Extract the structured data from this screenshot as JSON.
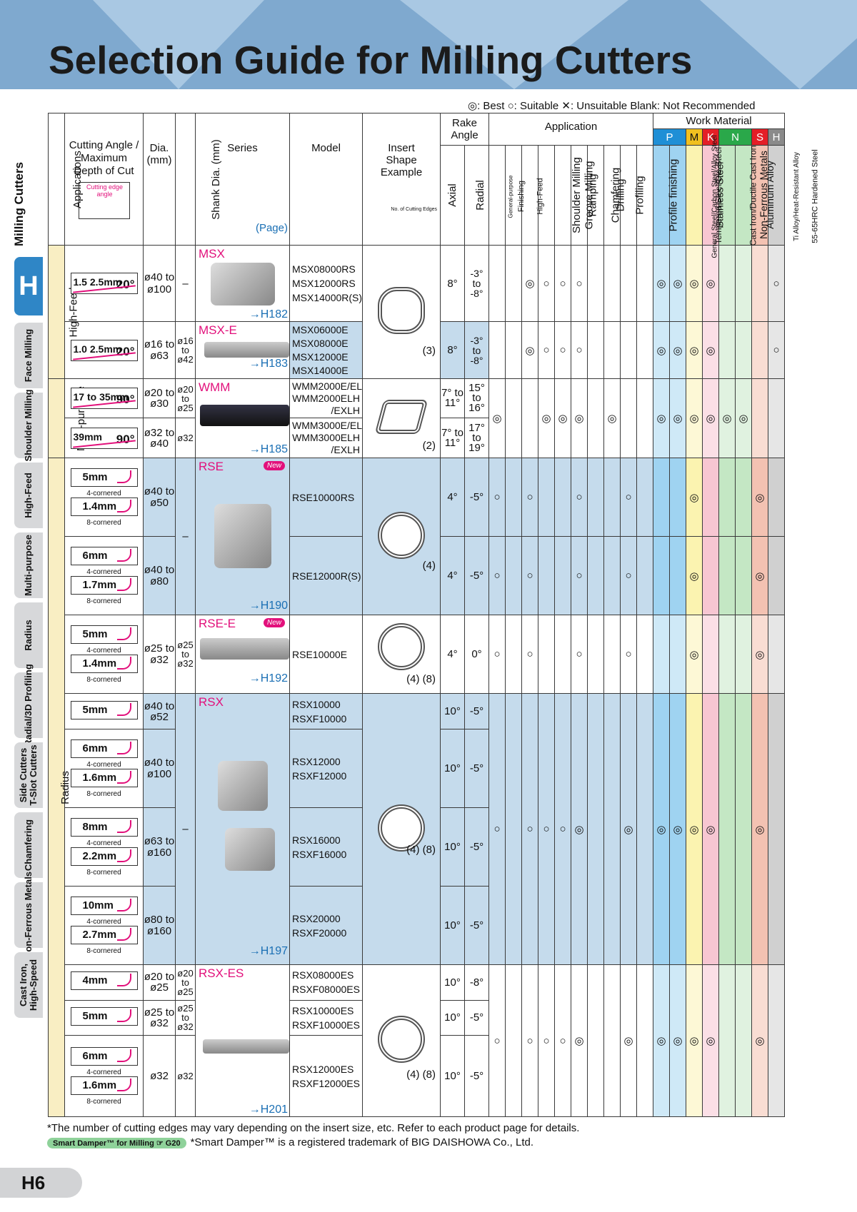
{
  "title": "Selection Guide for Milling Cutters",
  "legend": "◎: Best ○: Suitable ✕: Unsuitable Blank: Not Recommended",
  "side": {
    "main": "Milling Cutters",
    "letter": "H",
    "tabs": [
      "Face Milling",
      "Shoulder Milling",
      "High-Feed",
      "Multi-purpose",
      "Radius",
      "Radial/3D Profiling",
      "Side Cutters T-Slot Cutters",
      "Chamfering",
      "Non-Ferrous Metals",
      "Cast Iron, High-Speed"
    ]
  },
  "head": {
    "applications": "Applications",
    "cutting_angle": "Cutting Angle / Maximum Depth of Cut",
    "cutting_edge_angle": "Cutting edge angle",
    "dia": "Dia. (mm)",
    "shank": "Shank Dia. (mm)",
    "series": "Series",
    "page": "(Page)",
    "model": "Model",
    "insert": "Insert Shape Example",
    "no_edges": "No. of Cutting Edges",
    "rake": "Rake Angle",
    "axial": "Axial",
    "radial": "Radial",
    "application": "Application",
    "work_material": "Work Material",
    "apps": [
      "General-purpose",
      "Finishing",
      "High-Feed",
      "Shoulder Milling",
      "Groove Milling",
      "Ramping",
      "Chamfering",
      "Drilling",
      "Profiling",
      "Profile finishing"
    ],
    "app_face": "Face Milling",
    "mats": [
      "General Steel/Carbon Steel/Alloy Steel",
      "Tempered Steel/Die Steel",
      "Stainless Steel",
      "Cast Iron/Ductile Cast Iron",
      "Non-Ferrous Metals",
      "Aluminum Alloy",
      "Ti Alloy/Heat-Resistant Alloy",
      "55-65HRC Hardened Steel"
    ],
    "groups": [
      "P",
      "M",
      "K",
      "N",
      "S",
      "H"
    ]
  },
  "categories": {
    "hf": "High-Feed",
    "mp": "Multi-purpose",
    "rad": "Radius"
  },
  "rows": {
    "msx": {
      "depth": "1.5 2.5mm",
      "angle": "20°",
      "dia": "ø40 to ø100",
      "shank": "–",
      "series": "MSX",
      "page": "→H182",
      "models": [
        "MSX08000RS",
        "MSX12000RS",
        "MSX14000R(S)"
      ],
      "axial": "8°",
      "radial": "-3° to -8°"
    },
    "msxe": {
      "depth": "1.0 2.5mm",
      "angle": "20°",
      "dia": "ø16 to ø63",
      "shank": "ø16 to ø42",
      "series": "MSX-E",
      "page": "→H183",
      "models": [
        "MSX06000E",
        "MSX08000E",
        "MSX12000E",
        "MSX14000E"
      ],
      "edges": "(3)",
      "axial": "8°",
      "radial": "-3° to -8°"
    },
    "wmm1": {
      "depth": "17 to 35mm",
      "angle": "90°",
      "dia": "ø20 to ø30",
      "shank": "ø20 to ø25",
      "series": "WMM",
      "models": [
        "WMM2000E/EL",
        "WMM2000ELH /EXLH"
      ],
      "axial": "7° to 11°",
      "radial": "15° to 16°"
    },
    "wmm2": {
      "depth": "39mm",
      "angle": "90°",
      "dia": "ø32 to ø40",
      "shank": "ø32",
      "page": "→H185",
      "models": [
        "WMM3000E/EL",
        "WMM3000ELH /EXLH"
      ],
      "edges": "(2)",
      "axial": "7° to 11°",
      "radial": "17° to 19°"
    },
    "rse1": {
      "r1": "5mm",
      "c1": "4-cornered",
      "r2": "1.4mm",
      "c2": "8-cornered",
      "dia": "ø40 to ø50",
      "series": "RSE",
      "new": "New",
      "model": "RSE10000RS",
      "axial": "4°",
      "radial": "-5°"
    },
    "rse2": {
      "r1": "6mm",
      "c1": "4-cornered",
      "r2": "1.7mm",
      "c2": "8-cornered",
      "dia": "ø40 to ø80",
      "shank": "–",
      "page": "→H190",
      "model": "RSE12000R(S)",
      "edges": "(4)",
      "axial": "4°",
      "radial": "-5°"
    },
    "rsee": {
      "r1": "5mm",
      "c1": "4-cornered",
      "r2": "1.4mm",
      "c2": "8-cornered",
      "dia": "ø25 to ø32",
      "shank": "ø25 to ø32",
      "series": "RSE-E",
      "new": "New",
      "page": "→H192",
      "model": "RSE10000E",
      "edges": "(4) (8)",
      "axial": "4°",
      "radial": "0°"
    },
    "rsx1": {
      "r1": "5mm",
      "dia": "ø40 to ø52",
      "series": "RSX",
      "models": [
        "RSX10000",
        "RSXF10000"
      ],
      "axial": "10°",
      "radial": "-5°"
    },
    "rsx2": {
      "r1": "6mm",
      "c1": "4-cornered",
      "r2": "1.6mm",
      "c2": "8-cornered",
      "dia": "ø40 to ø100",
      "models": [
        "RSX12000",
        "RSXF12000"
      ],
      "axial": "10°",
      "radial": "-5°"
    },
    "rsx3": {
      "r1": "8mm",
      "c1": "4-cornered",
      "r2": "2.2mm",
      "c2": "8-cornered",
      "dia": "ø63 to ø160",
      "shank": "–",
      "models": [
        "RSX16000",
        "RSXF16000"
      ],
      "edges": "(4) (8)",
      "axial": "10°",
      "radial": "-5°"
    },
    "rsx4": {
      "r1": "10mm",
      "c1": "4-cornered",
      "r2": "2.7mm",
      "c2": "8-cornered",
      "dia": "ø80 to ø160",
      "page": "→H197",
      "models": [
        "RSX20000",
        "RSXF20000"
      ],
      "axial": "10°",
      "radial": "-5°"
    },
    "es1": {
      "r1": "4mm",
      "dia": "ø20 to ø25",
      "shank": "ø20 to ø25",
      "series": "RSX-ES",
      "models": [
        "RSX08000ES",
        "RSXF08000ES"
      ],
      "axial": "10°",
      "radial": "-8°"
    },
    "es2": {
      "r1": "5mm",
      "dia": "ø25 to ø32",
      "shank": "ø25 to ø32",
      "models": [
        "RSX10000ES",
        "RSXF10000ES"
      ],
      "axial": "10°",
      "radial": "-5°"
    },
    "es3": {
      "r1": "6mm",
      "c1": "4-cornered",
      "r2": "1.6mm",
      "c2": "8-cornered",
      "dia": "ø32",
      "shank": "ø32",
      "page": "→H201",
      "models": [
        "RSX12000ES",
        "RSXF12000ES"
      ],
      "edges": "(4) (8)",
      "axial": "10°",
      "radial": "-5°"
    }
  },
  "marks": {
    "msx": [
      "",
      "",
      "◎",
      "○",
      "○",
      "○",
      "",
      "",
      "",
      "",
      "◎",
      "◎",
      "◎",
      "◎",
      "",
      "",
      "",
      "○"
    ],
    "msxe": [
      "",
      "",
      "◎",
      "○",
      "○",
      "○",
      "",
      "",
      "",
      "",
      "◎",
      "◎",
      "◎",
      "◎",
      "",
      "",
      "",
      "○"
    ],
    "wmm": [
      "◎",
      "",
      "",
      "◎",
      "◎",
      "◎",
      "",
      "◎",
      "",
      "",
      "◎",
      "◎",
      "◎",
      "◎",
      "◎",
      "◎",
      "",
      ""
    ],
    "rse1": [
      "○",
      "",
      "○",
      "",
      "",
      "○",
      "",
      "",
      "○",
      "",
      "",
      "",
      "◎",
      "",
      "",
      "",
      "◎",
      ""
    ],
    "rse2": [
      "○",
      "",
      "○",
      "",
      "",
      "○",
      "",
      "",
      "○",
      "",
      "",
      "",
      "◎",
      "",
      "",
      "",
      "◎",
      ""
    ],
    "rsee": [
      "○",
      "",
      "○",
      "",
      "",
      "○",
      "",
      "",
      "○",
      "",
      "",
      "",
      "◎",
      "",
      "",
      "",
      "◎",
      ""
    ],
    "rsx": [
      "○",
      "",
      "○",
      "○",
      "○",
      "◎",
      "",
      "",
      "◎",
      "",
      "◎",
      "◎",
      "◎",
      "◎",
      "",
      "",
      "◎",
      ""
    ],
    "es": [
      "○",
      "",
      "○",
      "○",
      "○",
      "◎",
      "",
      "",
      "◎",
      "",
      "◎",
      "◎",
      "◎",
      "◎",
      "",
      "",
      "◎",
      ""
    ]
  },
  "footer": {
    "note": "*The number of cutting edges may vary depending on the insert size, etc. Refer to each product page for details.",
    "chip": "Smart Damper™ for Milling ☞ G20",
    "tm": "*Smart Damper™ is a registered trademark of BIG DAISHOWA Co., Ltd."
  },
  "page_number": "H6",
  "colors": {
    "P": "#1f8fd6",
    "M": "#f0c020",
    "K": "#e41e26",
    "N": "#2aa84a",
    "S": "#e41e26",
    "H": "#8a8a8a",
    "header_blue": "#7fa9cf"
  }
}
